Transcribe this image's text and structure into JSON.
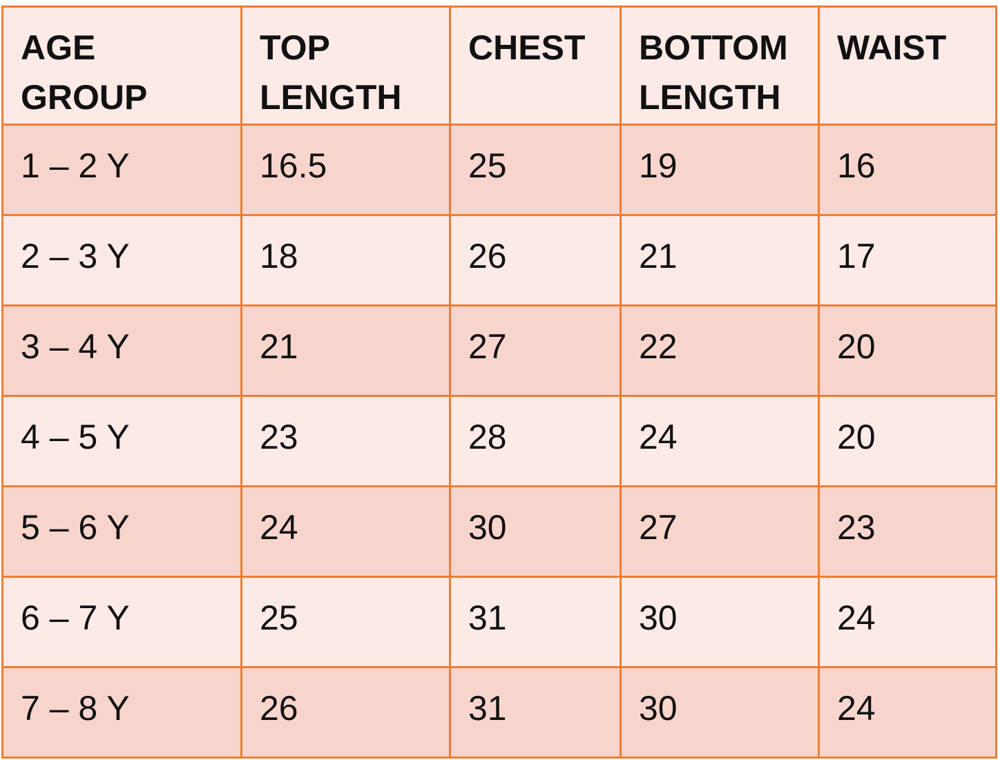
{
  "table": {
    "header": [
      "AGE GROUP",
      "TOP LENGTH",
      "CHEST",
      "BOTTOM LENGTH",
      "WAIST"
    ],
    "rows": [
      [
        "1 – 2 Y",
        16.5,
        25,
        19,
        16
      ],
      [
        "2 – 3 Y",
        18,
        26,
        21,
        17
      ],
      [
        "3 – 4 Y",
        21,
        27,
        22,
        20
      ],
      [
        "4 – 5 Y",
        23,
        28,
        24,
        20
      ],
      [
        "5 – 6 Y",
        24,
        30,
        27,
        23
      ],
      [
        "6 – 7 Y",
        25,
        31,
        30,
        24
      ],
      [
        "7 – 8 Y",
        26,
        31,
        30,
        24
      ]
    ]
  }
}
